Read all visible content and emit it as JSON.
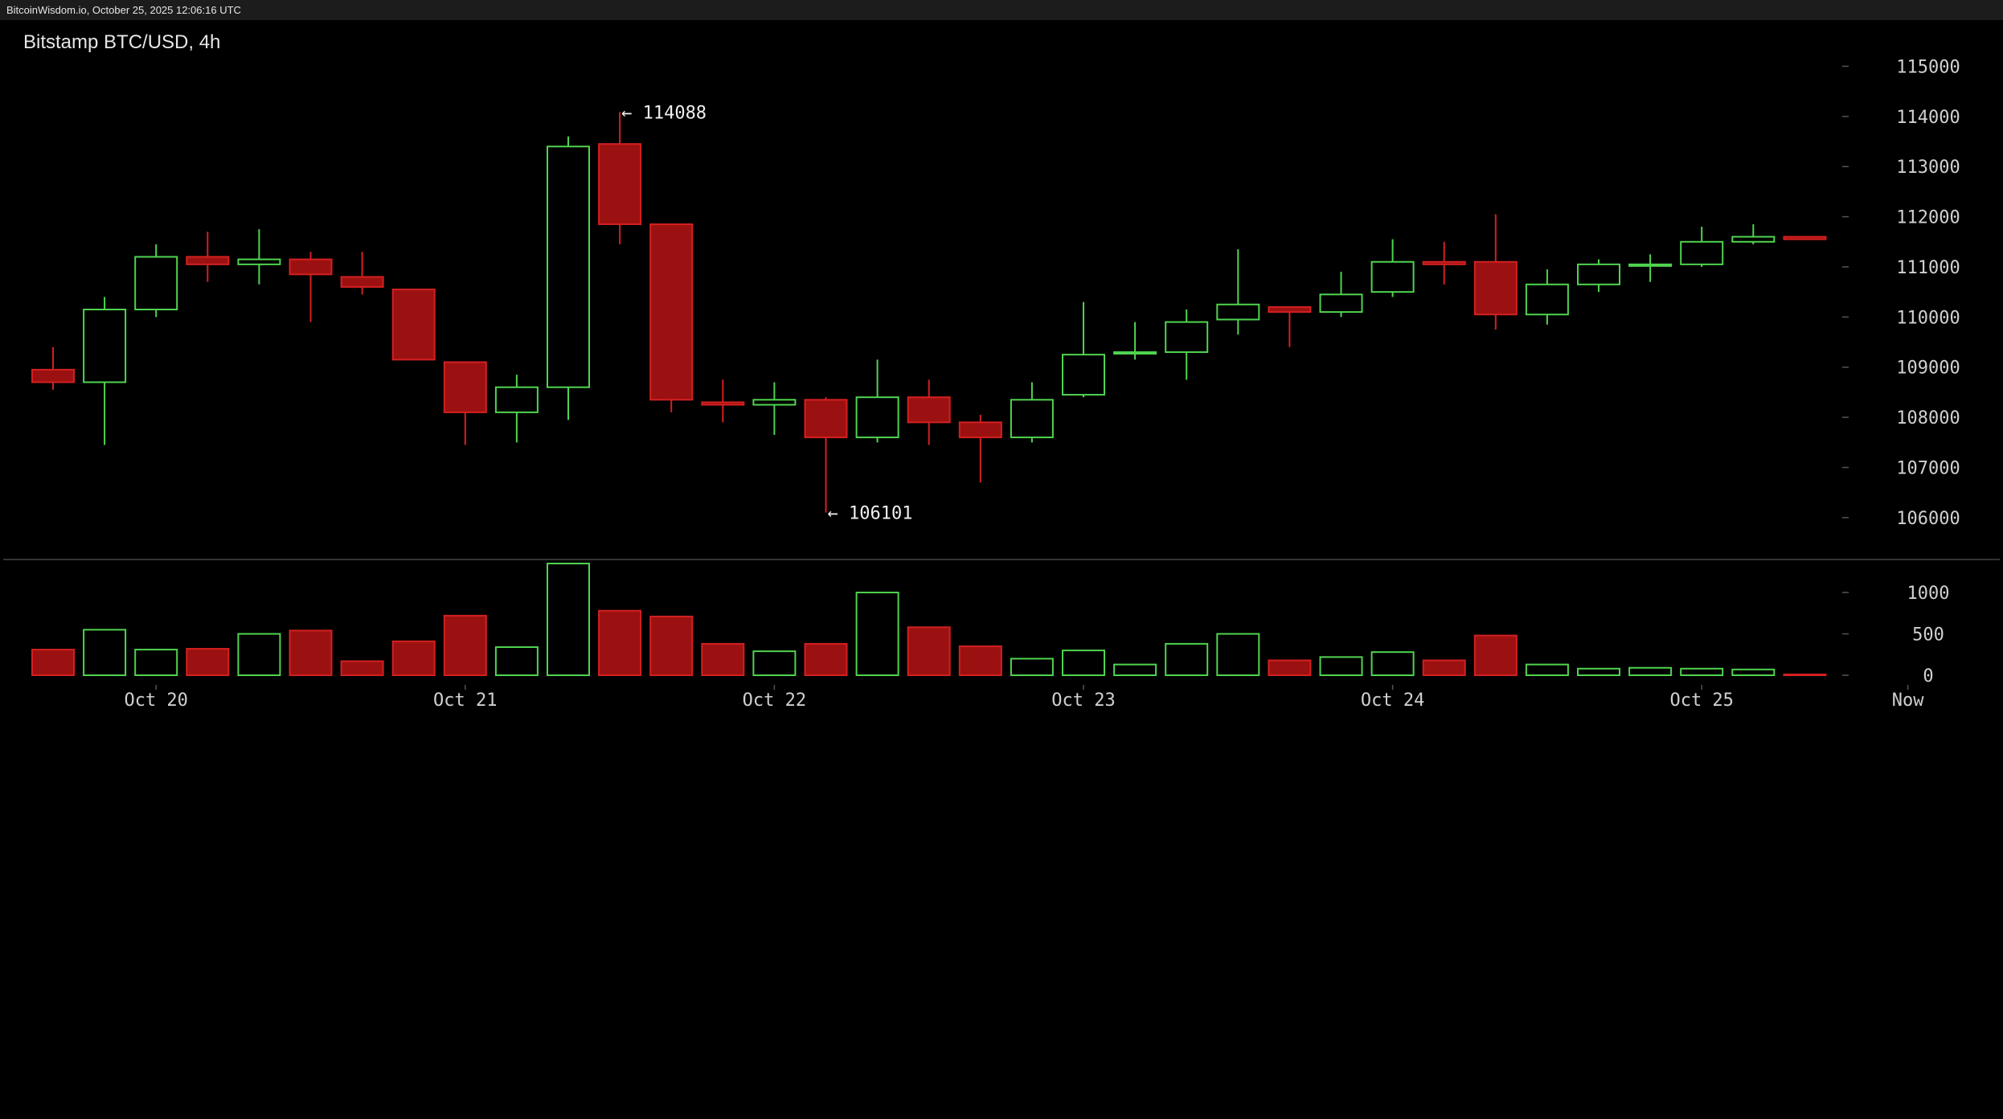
{
  "header": {
    "text": "BitcoinWisdom.io, October 25, 2025 12:06:16 UTC"
  },
  "colors": {
    "up": "#4fd44f",
    "down": "#9b1111",
    "down_line": "#d42020",
    "axis_text": "#d0d0d0",
    "separator": "#444444"
  },
  "chart_data": {
    "type": "candlestick",
    "title": "Bitstamp BTC/USD, 4h",
    "price_axis": {
      "ticks": [
        106000,
        107000,
        108000,
        109000,
        110000,
        111000,
        112000,
        113000,
        114000,
        115000
      ],
      "ylim": [
        104700,
        115600
      ]
    },
    "volume_axis": {
      "ticks": [
        0,
        500,
        1000
      ],
      "ylim": [
        0,
        1350
      ]
    },
    "x_labels": [
      {
        "label": "Oct 20",
        "index": 2
      },
      {
        "label": "Oct 21",
        "index": 8
      },
      {
        "label": "Oct 22",
        "index": 14
      },
      {
        "label": "Oct 23",
        "index": 20
      },
      {
        "label": "Oct 24",
        "index": 26
      },
      {
        "label": "Oct 25",
        "index": 32
      },
      {
        "label": "Now",
        "index": 36
      }
    ],
    "candles": [
      {
        "o": 108950,
        "h": 109400,
        "l": 108550,
        "c": 108700,
        "v": 310
      },
      {
        "o": 108700,
        "h": 110400,
        "l": 107450,
        "c": 110150,
        "v": 550
      },
      {
        "o": 110150,
        "h": 111450,
        "l": 110000,
        "c": 111200,
        "v": 310
      },
      {
        "o": 111200,
        "h": 111700,
        "l": 110700,
        "c": 111050,
        "v": 320
      },
      {
        "o": 111050,
        "h": 111750,
        "l": 110650,
        "c": 111150,
        "v": 500
      },
      {
        "o": 111150,
        "h": 111300,
        "l": 109900,
        "c": 110850,
        "v": 540
      },
      {
        "o": 110800,
        "h": 111300,
        "l": 110450,
        "c": 110600,
        "v": 170
      },
      {
        "o": 110550,
        "h": 110550,
        "l": 109150,
        "c": 109150,
        "v": 410
      },
      {
        "o": 109100,
        "h": 109100,
        "l": 107450,
        "c": 108100,
        "v": 720
      },
      {
        "o": 108100,
        "h": 108850,
        "l": 107500,
        "c": 108600,
        "v": 340
      },
      {
        "o": 108600,
        "h": 113600,
        "l": 107950,
        "c": 113400,
        "v": 1350
      },
      {
        "o": 113450,
        "h": 114088,
        "l": 111450,
        "c": 111850,
        "v": 780
      },
      {
        "o": 111850,
        "h": 111850,
        "l": 108100,
        "c": 108350,
        "v": 710
      },
      {
        "o": 108300,
        "h": 108750,
        "l": 107900,
        "c": 108250,
        "v": 380
      },
      {
        "o": 108250,
        "h": 108700,
        "l": 107650,
        "c": 108350,
        "v": 290
      },
      {
        "o": 108350,
        "h": 108400,
        "l": 106101,
        "c": 107600,
        "v": 380
      },
      {
        "o": 107600,
        "h": 109150,
        "l": 107500,
        "c": 108400,
        "v": 1000
      },
      {
        "o": 108400,
        "h": 108750,
        "l": 107450,
        "c": 107900,
        "v": 580
      },
      {
        "o": 107900,
        "h": 108050,
        "l": 106700,
        "c": 107600,
        "v": 350
      },
      {
        "o": 107600,
        "h": 108700,
        "l": 107500,
        "c": 108350,
        "v": 200
      },
      {
        "o": 108450,
        "h": 110300,
        "l": 108400,
        "c": 109250,
        "v": 300
      },
      {
        "o": 109300,
        "h": 109900,
        "l": 109150,
        "c": 109300,
        "v": 130
      },
      {
        "o": 109300,
        "h": 110150,
        "l": 108750,
        "c": 109900,
        "v": 380
      },
      {
        "o": 109950,
        "h": 111350,
        "l": 109650,
        "c": 110250,
        "v": 500
      },
      {
        "o": 110200,
        "h": 110200,
        "l": 109400,
        "c": 110100,
        "v": 180
      },
      {
        "o": 110100,
        "h": 110900,
        "l": 110000,
        "c": 110450,
        "v": 220
      },
      {
        "o": 110500,
        "h": 111550,
        "l": 110400,
        "c": 111100,
        "v": 280
      },
      {
        "o": 111100,
        "h": 111500,
        "l": 110650,
        "c": 111050,
        "v": 180
      },
      {
        "o": 111100,
        "h": 112050,
        "l": 109750,
        "c": 110050,
        "v": 480
      },
      {
        "o": 110050,
        "h": 110950,
        "l": 109850,
        "c": 110650,
        "v": 130
      },
      {
        "o": 110650,
        "h": 111150,
        "l": 110500,
        "c": 111050,
        "v": 80
      },
      {
        "o": 111050,
        "h": 111250,
        "l": 110700,
        "c": 111050,
        "v": 90
      },
      {
        "o": 111050,
        "h": 111800,
        "l": 111000,
        "c": 111500,
        "v": 80
      },
      {
        "o": 111500,
        "h": 111850,
        "l": 111450,
        "c": 111600,
        "v": 70
      },
      {
        "o": 111600,
        "h": 111600,
        "l": 111550,
        "c": 111550,
        "v": 10
      }
    ],
    "annotations": [
      {
        "text": "← 114088",
        "index": 11,
        "price": 114088
      },
      {
        "text": "← 106101",
        "index": 15,
        "price": 106101
      }
    ]
  }
}
